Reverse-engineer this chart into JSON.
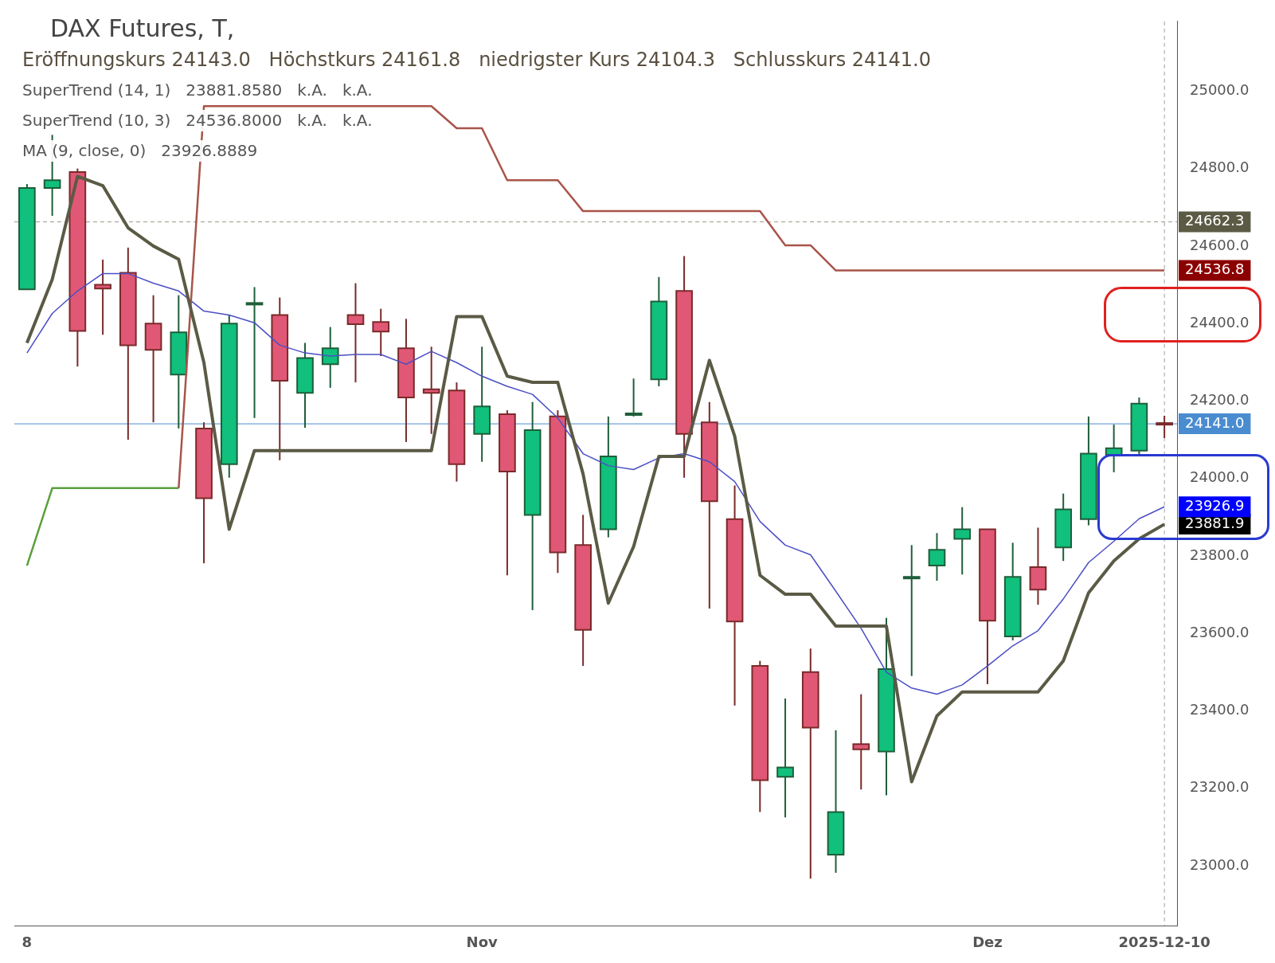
{
  "chart_data": {
    "type": "candlestick",
    "title": "DAX Futures, T,",
    "subtitle": "Eröffnungskurs 24143.0   Höchstkurs 24161.8   niedrigster Kurs 24104.3   Schlusskurs 24141.0",
    "categories": [
      "8",
      null,
      null,
      null,
      null,
      null,
      null,
      null,
      null,
      null,
      null,
      null,
      null,
      null,
      null,
      null,
      null,
      null,
      "Nov",
      null,
      null,
      null,
      null,
      null,
      null,
      null,
      null,
      null,
      null,
      null,
      null,
      null,
      null,
      null,
      null,
      null,
      null,
      null,
      "Dez",
      null,
      null,
      null,
      null,
      null,
      null,
      "2025-12-10"
    ],
    "ohlc": [
      [
        24488,
        24760,
        24488,
        24750
      ],
      [
        24750,
        24887,
        24678,
        24770
      ],
      [
        24791,
        24800,
        24289,
        24381
      ],
      [
        24500,
        24565,
        24371,
        24490
      ],
      [
        24531,
        24596,
        24100,
        24344
      ],
      [
        24400,
        24473,
        24145,
        24332
      ],
      [
        24268,
        24473,
        24129,
        24377
      ],
      [
        24129,
        24145,
        23781,
        23949
      ],
      [
        24037,
        24422,
        24002,
        24400
      ],
      [
        24451,
        24494,
        24156,
        24453
      ],
      [
        24422,
        24467,
        24047,
        24252
      ],
      [
        24221,
        24350,
        24131,
        24311
      ],
      [
        24295,
        24391,
        24234,
        24336
      ],
      [
        24422,
        24504,
        24248,
        24398
      ],
      [
        24404,
        24438,
        24316,
        24379
      ],
      [
        24336,
        24412,
        24094,
        24209
      ],
      [
        24230,
        24340,
        24115,
        24221
      ],
      [
        24227,
        24248,
        23992,
        24037
      ],
      [
        24115,
        24340,
        24043,
        24186
      ],
      [
        24166,
        24176,
        23750,
        24018
      ],
      [
        23906,
        24197,
        23660,
        24125
      ],
      [
        24160,
        24176,
        23756,
        23809
      ],
      [
        23828,
        23906,
        23516,
        23609
      ],
      [
        23869,
        24160,
        23848,
        24057
      ],
      [
        24164,
        24258,
        24160,
        24168
      ],
      [
        24256,
        24520,
        24238,
        24457
      ],
      [
        24484,
        24574,
        24002,
        24115
      ],
      [
        24145,
        24197,
        23664,
        23941
      ],
      [
        23895,
        23982,
        23414,
        23631
      ],
      [
        23516,
        23529,
        23139,
        23221
      ],
      [
        23230,
        23432,
        23125,
        23254
      ],
      [
        23500,
        23561,
        22967,
        23357
      ],
      [
        23029,
        23350,
        22982,
        23139
      ],
      [
        23314,
        23443,
        23197,
        23301
      ],
      [
        23295,
        23640,
        23182,
        23508
      ],
      [
        23742,
        23828,
        23490,
        23746
      ],
      [
        23775,
        23859,
        23736,
        23816
      ],
      [
        23844,
        23926,
        23752,
        23869
      ],
      [
        23869,
        23869,
        23469,
        23633
      ],
      [
        23592,
        23834,
        23582,
        23746
      ],
      [
        23771,
        23873,
        23674,
        23713
      ],
      [
        23822,
        23961,
        23787,
        23920
      ],
      [
        23895,
        24160,
        23879,
        24064
      ],
      [
        24061,
        24139,
        24016,
        24078
      ],
      [
        24072,
        24209,
        24057,
        24193
      ],
      [
        24143,
        24161.8,
        24104.3,
        24141
      ]
    ],
    "series": [
      {
        "type": "line",
        "color": "#5b5a45",
        "values": [
          24350,
          24514,
          24780,
          24756,
          24647,
          24600,
          24566,
          24299,
          23869,
          24072,
          24072,
          24072,
          24072,
          24072,
          24072,
          24072,
          24072,
          24418,
          24418,
          24264,
          24248,
          24248,
          24012,
          23678,
          23824,
          24057,
          24057,
          24305,
          24109,
          23750,
          23701,
          23701,
          23619,
          23619,
          23619,
          23217,
          23387,
          23449,
          23449,
          23449,
          23449,
          23529,
          23705,
          23787,
          23844,
          23881.9
        ],
        "value_labels": [
          null,
          null,
          null,
          null,
          null,
          null,
          null,
          null,
          null,
          null,
          null,
          null,
          null,
          null,
          null,
          null,
          null,
          null,
          null,
          null,
          null,
          null,
          null,
          null,
          null,
          null,
          null,
          null,
          null,
          null,
          null,
          null,
          null,
          null,
          null,
          null,
          null,
          null,
          null,
          null,
          null,
          null,
          null,
          null,
          null,
          "23881.9"
        ]
      },
      {
        "type": "line",
        "color": "#a8544a",
        "values": [
          null,
          null,
          null,
          null,
          null,
          null,
          23975,
          24961,
          24961,
          24961,
          24961,
          24961,
          24961,
          24961,
          24961,
          24961,
          24961,
          24904,
          24904,
          24770,
          24770,
          24770,
          24690,
          24690,
          24690,
          24690,
          24690,
          24690,
          24690,
          24690,
          24602,
          24602,
          24536.8,
          24536.8,
          24536.8,
          24536.8,
          24536.8,
          24536.8,
          24536.8,
          24536.8,
          24536.8,
          24536.8,
          24536.8,
          24536.8,
          24536.8,
          24536.8
        ],
        "value_labels": [
          null,
          null,
          null,
          null,
          null,
          null,
          null,
          null,
          null,
          null,
          null,
          null,
          null,
          null,
          null,
          null,
          null,
          null,
          null,
          null,
          null,
          null,
          null,
          null,
          null,
          null,
          null,
          null,
          null,
          null,
          null,
          null,
          null,
          null,
          null,
          null,
          null,
          null,
          null,
          null,
          null,
          null,
          null,
          null,
          null,
          "24536.8"
        ]
      },
      {
        "type": "line",
        "color": "#5aa03c",
        "values": [
          23775,
          23975,
          23975,
          23975,
          23975,
          23975,
          23975,
          null,
          null,
          null,
          null,
          null,
          null,
          null,
          null,
          null,
          null,
          null,
          null,
          null,
          null,
          null,
          null,
          null,
          null,
          null,
          null,
          null,
          null,
          null,
          null,
          null,
          null,
          null,
          null,
          null,
          null,
          null,
          null,
          null,
          null,
          null,
          null,
          null,
          null,
          null
        ]
      },
      {
        "type": "line",
        "color": "#4b4fc4",
        "values": [
          24324,
          24426,
          24484,
          24529,
          24529,
          24504,
          24484,
          24432,
          24422,
          24402,
          24344,
          24324,
          24316,
          24320,
          24320,
          24295,
          24328,
          24299,
          24264,
          24238,
          24217,
          24156,
          24064,
          24033,
          24023,
          24053,
          24064,
          24043,
          23992,
          23889,
          23828,
          23803,
          23709,
          23613,
          23500,
          23459,
          23443,
          23467,
          23516,
          23568,
          23607,
          23689,
          23783,
          23838,
          23896,
          23926.9
        ],
        "value_labels": [
          null,
          null,
          null,
          null,
          null,
          null,
          null,
          null,
          null,
          null,
          null,
          null,
          null,
          null,
          null,
          null,
          null,
          null,
          null,
          null,
          null,
          null,
          null,
          null,
          null,
          null,
          null,
          null,
          null,
          null,
          null,
          null,
          null,
          null,
          null,
          null,
          null,
          null,
          null,
          null,
          null,
          null,
          null,
          null,
          null,
          "23926.9"
        ]
      }
    ],
    "ylim": [
      22845,
      25180
    ],
    "yticks": [
      {
        "value": 23000,
        "label": "23000.0"
      },
      {
        "value": 23200,
        "label": "23200.0"
      },
      {
        "value": 23400,
        "label": "23400.0"
      },
      {
        "value": 23600,
        "label": "23600.0"
      },
      {
        "value": 23800,
        "label": "23800.0"
      },
      {
        "value": 24000,
        "label": "24000.0"
      },
      {
        "value": 24200,
        "label": "24200.0"
      },
      {
        "value": 24400,
        "label": "24400.0"
      },
      {
        "value": 24600,
        "label": "24600.0"
      },
      {
        "value": 24800,
        "label": "24800.0"
      },
      {
        "value": 25000,
        "label": "25000.0"
      }
    ],
    "ref_lines": [
      {
        "axis": "y",
        "value": 24662.3,
        "label": "24662.3",
        "color": "#9a9a8a",
        "line_style": "dashed"
      },
      {
        "axis": "y",
        "value": 24141,
        "label": "24141.0",
        "color": "#4a8cd0",
        "line_style": "solid"
      },
      {
        "axis": "x",
        "value": "2025-12-10",
        "color": "#a0a0a0",
        "line_style": "dashed"
      }
    ],
    "annotations": [
      "SuperTrend (14, 1)   23881.8580   k.A.   k.A.",
      "SuperTrend (10, 3)   24536.8000   k.A.   k.A.",
      "MA (9, close, 0)   23926.8889"
    ],
    "grid": false,
    "legend": false
  }
}
